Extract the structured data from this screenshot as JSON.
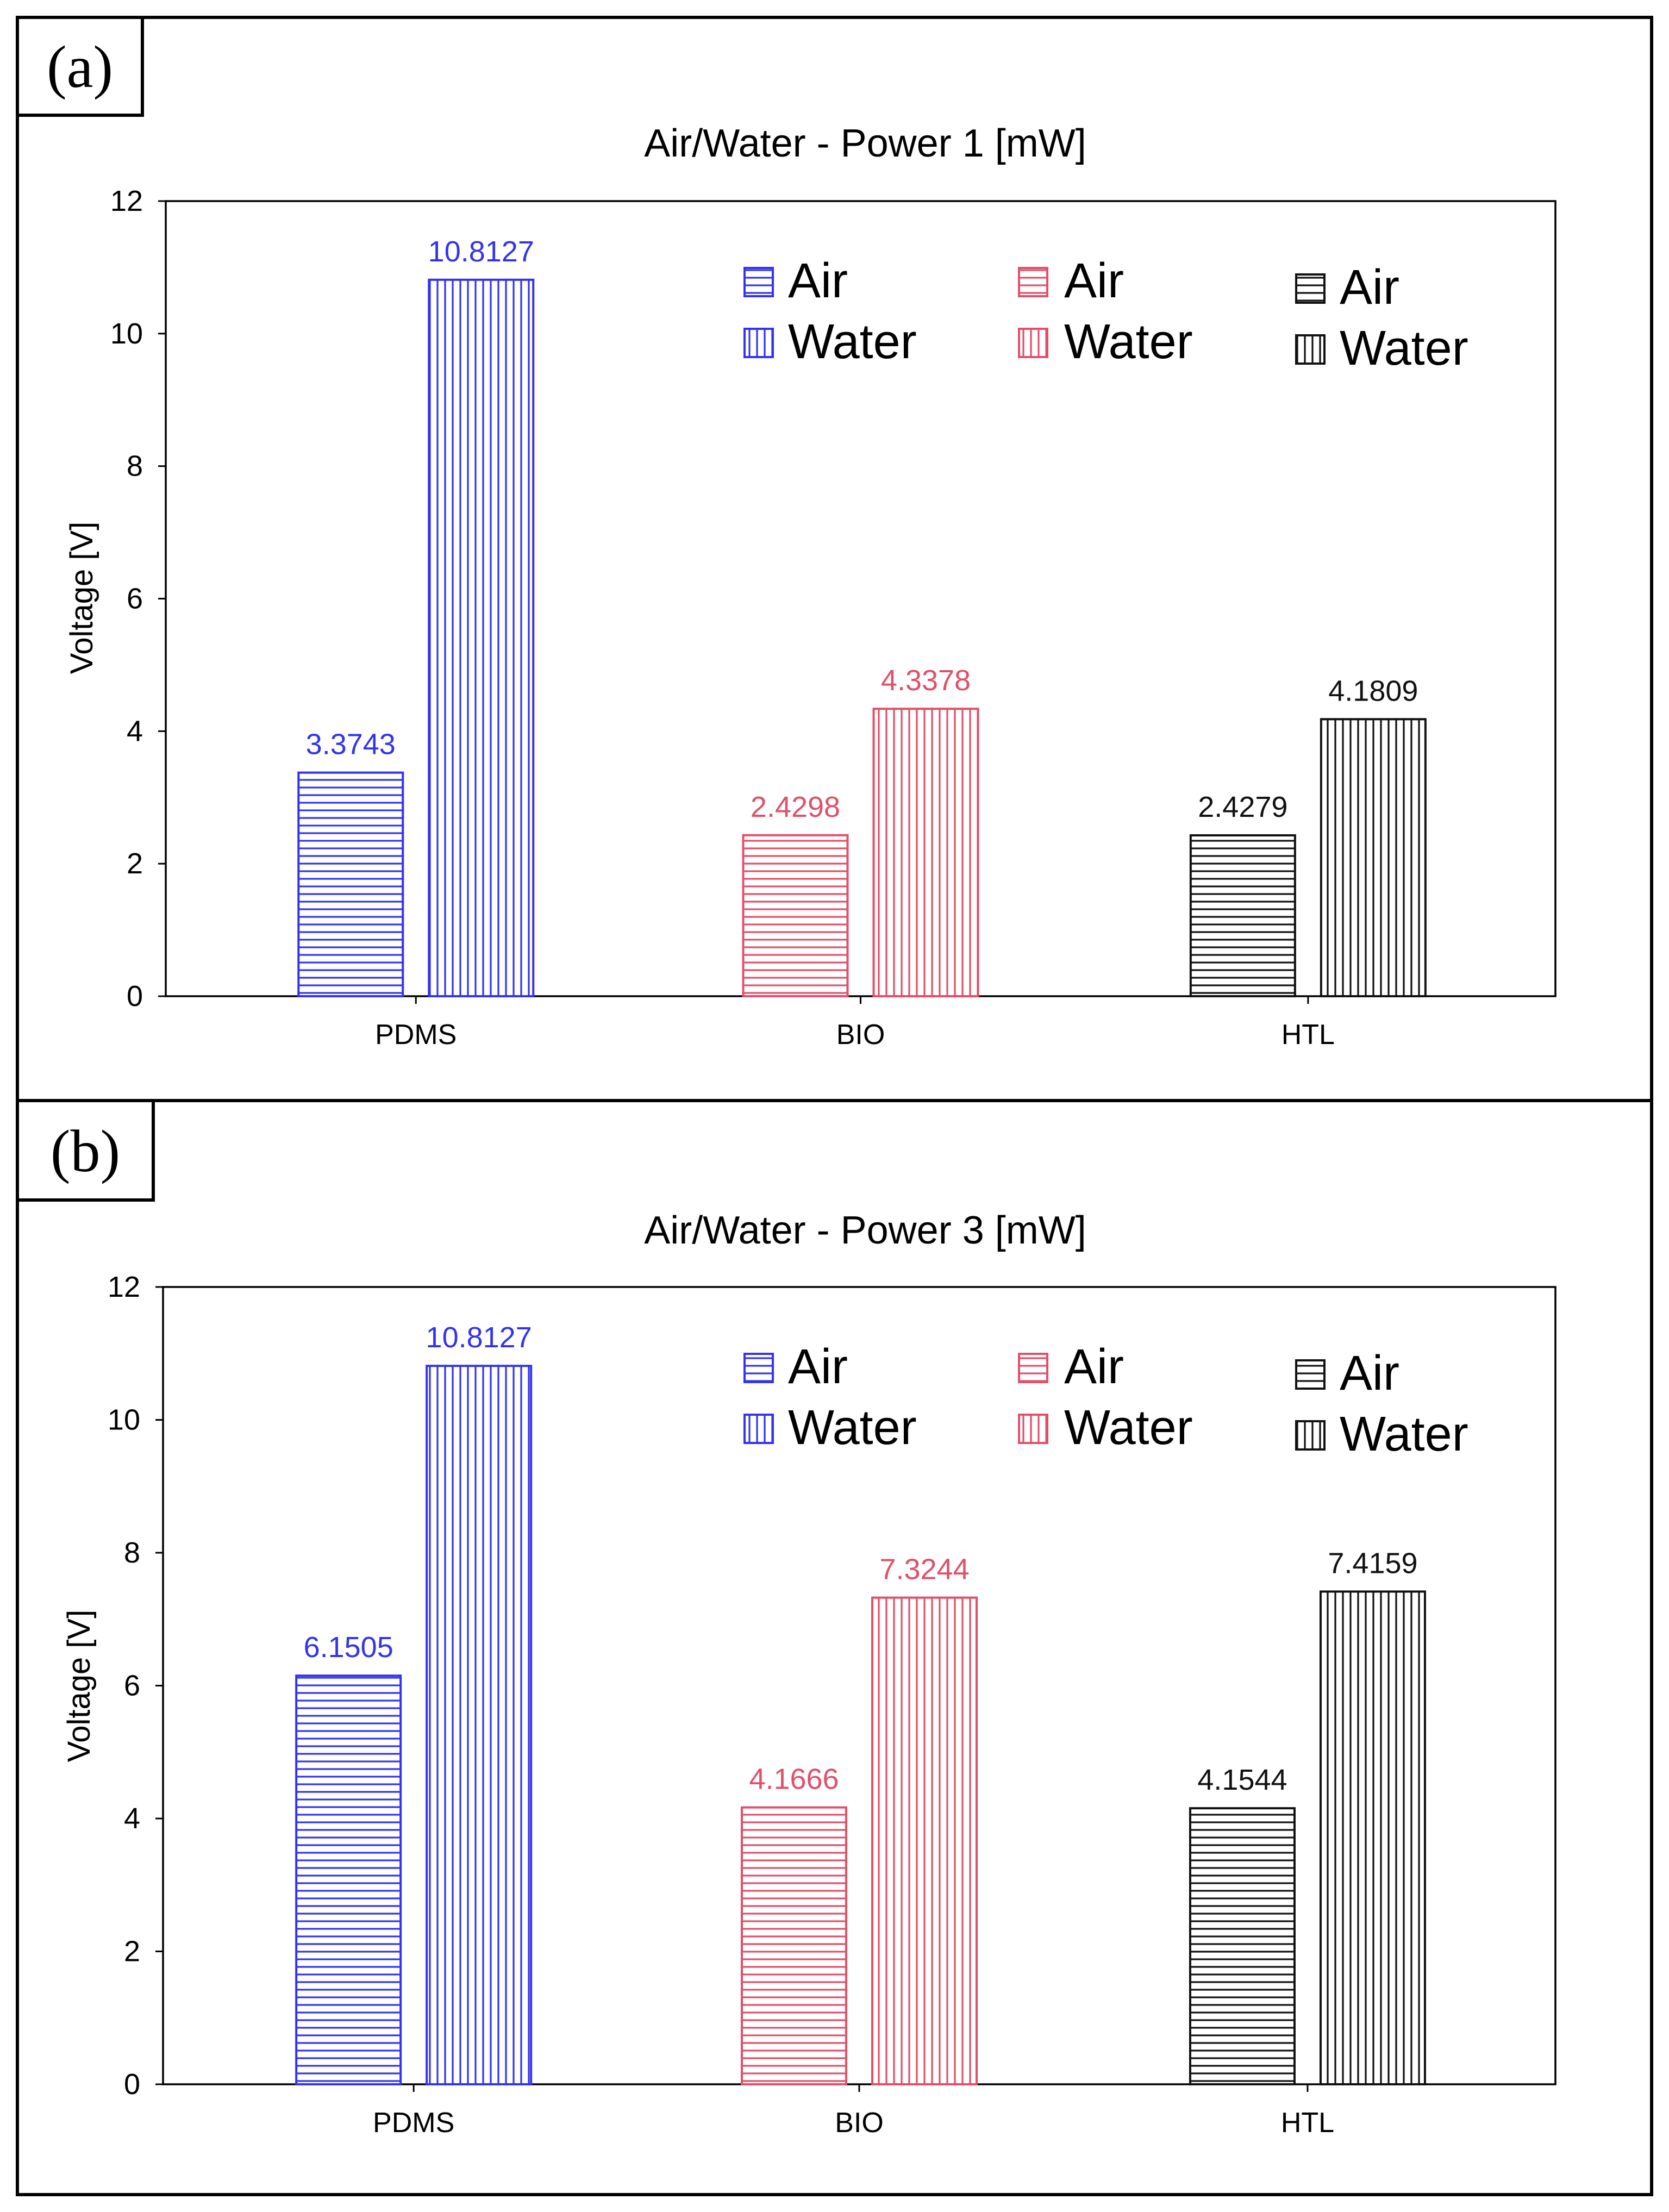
{
  "panels": [
    {
      "tag": "(a)"
    },
    {
      "tag": "(b)"
    }
  ],
  "colors": {
    "PDMS": "#3333ee",
    "BIO": "#e0506a",
    "HTL": "#111111",
    "axis": "#000000",
    "frame": "#000000"
  },
  "chart_data": [
    {
      "type": "bar",
      "title": "Air/Water - Power 1 [mW]",
      "xlabel": "",
      "ylabel": "Voltage [V]",
      "ylim": [
        0,
        12
      ],
      "yticks": [
        0,
        2,
        4,
        6,
        8,
        10,
        12
      ],
      "grid": false,
      "legend_position": "top-right",
      "categories": [
        "PDMS",
        "BIO",
        "HTL"
      ],
      "series": [
        {
          "name": "Air",
          "values": [
            3.3743,
            2.4298,
            2.4279
          ],
          "labels": [
            "3.3743",
            "2.4298",
            "2.4279"
          ]
        },
        {
          "name": "Water",
          "values": [
            10.8127,
            4.3378,
            4.1809
          ],
          "labels": [
            "10.8127",
            "4.3378",
            "4.1809"
          ]
        }
      ],
      "legend": [
        {
          "name": "Air",
          "pattern": "horizontal",
          "color": "PDMS"
        },
        {
          "name": "Water",
          "pattern": "vertical",
          "color": "PDMS"
        },
        {
          "name": "Air",
          "pattern": "horizontal",
          "color": "BIO"
        },
        {
          "name": "Water",
          "pattern": "vertical",
          "color": "BIO"
        },
        {
          "name": "Air",
          "pattern": "horizontal",
          "color": "HTL"
        },
        {
          "name": "Water",
          "pattern": "vertical",
          "color": "HTL"
        }
      ]
    },
    {
      "type": "bar",
      "title": "Air/Water - Power 3 [mW]",
      "xlabel": "",
      "ylabel": "Voltage [V]",
      "ylim": [
        0,
        12
      ],
      "yticks": [
        0,
        2,
        4,
        6,
        8,
        10,
        12
      ],
      "grid": false,
      "legend_position": "top-right",
      "categories": [
        "PDMS",
        "BIO",
        "HTL"
      ],
      "series": [
        {
          "name": "Air",
          "values": [
            6.1505,
            4.1666,
            4.1544
          ],
          "labels": [
            "6.1505",
            "4.1666",
            "4.1544"
          ]
        },
        {
          "name": "Water",
          "values": [
            10.8127,
            7.3244,
            7.4159
          ],
          "labels": [
            "10.8127",
            "7.3244",
            "7.4159"
          ]
        }
      ],
      "legend": [
        {
          "name": "Air",
          "pattern": "horizontal",
          "color": "PDMS"
        },
        {
          "name": "Water",
          "pattern": "vertical",
          "color": "PDMS"
        },
        {
          "name": "Air",
          "pattern": "horizontal",
          "color": "BIO"
        },
        {
          "name": "Water",
          "pattern": "vertical",
          "color": "BIO"
        },
        {
          "name": "Air",
          "pattern": "horizontal",
          "color": "HTL"
        },
        {
          "name": "Water",
          "pattern": "vertical",
          "color": "HTL"
        }
      ]
    }
  ]
}
